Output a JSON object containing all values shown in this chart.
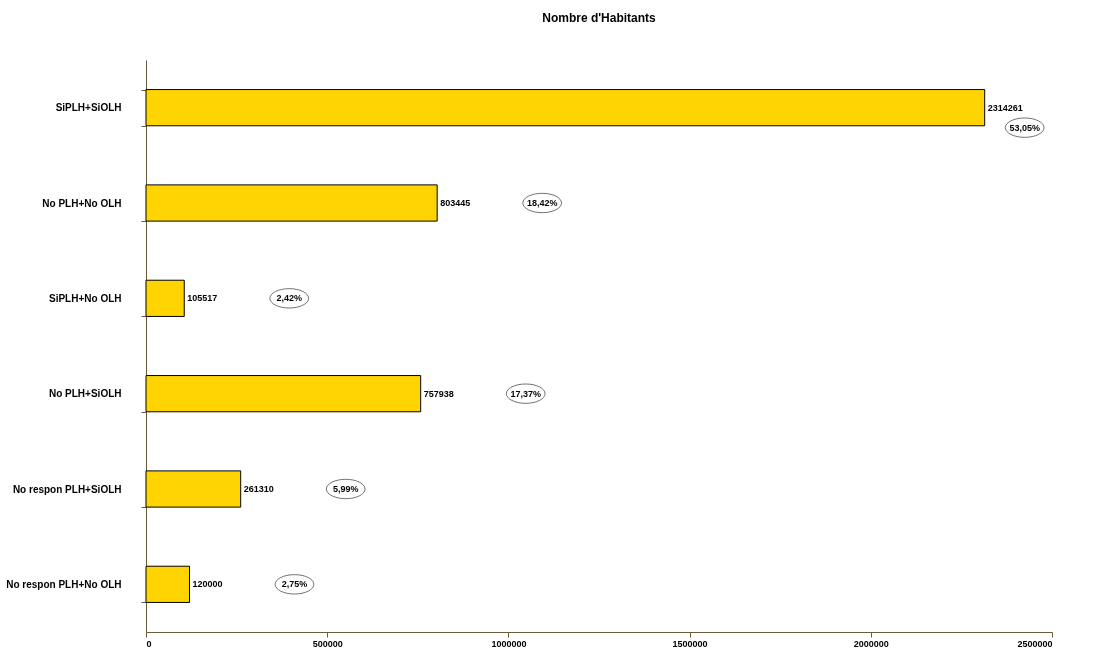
{
  "chart_data": {
    "type": "bar",
    "orientation": "horizontal",
    "title": "Nombre d'Habitants",
    "categories": [
      "SiPLH+SiOLH",
      "No PLH+No OLH",
      "SiPLH+No OLH",
      "No PLH+SiOLH",
      "No respon PLH+SiOLH",
      "No respon PLH+No OLH"
    ],
    "values": [
      2314261,
      803445,
      105517,
      757938,
      261310,
      120000
    ],
    "color": "#ffd400",
    "data_labels": true,
    "grid": false,
    "xlim": [
      0,
      2500000
    ],
    "xticks": [
      0,
      500000,
      1000000,
      1500000,
      2000000,
      2500000
    ],
    "annotations": [
      "53,05%",
      "18,42%",
      "2,42%",
      "17,37%",
      "5,99%",
      "2,75%"
    ]
  }
}
